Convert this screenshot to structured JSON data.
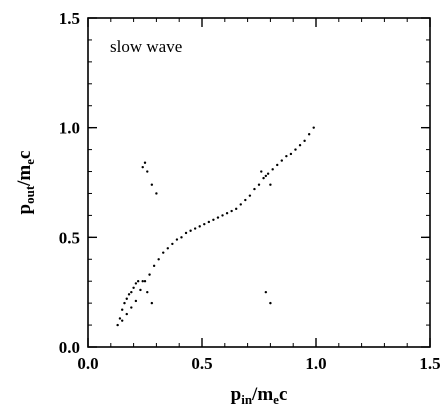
{
  "chart_data": {
    "type": "scatter",
    "title": "",
    "annotation": "slow wave",
    "xlabel": {
      "main": "p",
      "sub": "in",
      "suffix": "/m",
      "sub2": "e",
      "end": "c"
    },
    "ylabel": {
      "main": "p",
      "sub": "out",
      "suffix": "/m",
      "sub2": "e",
      "end": "c"
    },
    "xlim": [
      0.0,
      1.5
    ],
    "ylim": [
      0.0,
      1.5
    ],
    "x_ticks": [
      0.0,
      0.5,
      1.0,
      1.5
    ],
    "y_ticks": [
      0.0,
      0.5,
      1.0,
      1.5
    ],
    "x_tick_labels": [
      "0.0",
      "0.5",
      "1.0",
      "1.5"
    ],
    "y_tick_labels": [
      "0.0",
      "0.5",
      "1.0",
      "1.5"
    ],
    "minor_tick_step": 0.1,
    "grid": false,
    "point_color": "#000000",
    "series": [
      {
        "x": [
          0.13,
          0.14,
          0.15,
          0.16,
          0.17,
          0.18,
          0.19,
          0.2,
          0.21,
          0.22,
          0.15,
          0.17,
          0.19,
          0.21,
          0.23,
          0.25,
          0.27,
          0.29,
          0.31,
          0.33,
          0.35,
          0.37,
          0.39,
          0.41,
          0.43,
          0.45,
          0.47,
          0.49,
          0.51,
          0.53,
          0.55,
          0.57,
          0.59,
          0.61,
          0.63,
          0.65,
          0.67,
          0.69,
          0.71,
          0.73,
          0.75,
          0.77,
          0.79,
          0.81,
          0.83,
          0.85,
          0.87,
          0.89,
          0.91,
          0.93,
          0.95,
          0.97,
          0.99,
          0.24,
          0.25,
          0.26,
          0.28,
          0.3,
          0.24,
          0.26,
          0.28,
          0.76,
          0.78,
          0.8,
          0.78,
          0.8
        ],
        "y": [
          0.1,
          0.13,
          0.17,
          0.2,
          0.22,
          0.24,
          0.25,
          0.27,
          0.29,
          0.3,
          0.12,
          0.15,
          0.18,
          0.21,
          0.26,
          0.3,
          0.33,
          0.37,
          0.4,
          0.43,
          0.45,
          0.47,
          0.49,
          0.5,
          0.52,
          0.53,
          0.54,
          0.55,
          0.56,
          0.57,
          0.58,
          0.59,
          0.6,
          0.61,
          0.62,
          0.63,
          0.65,
          0.67,
          0.69,
          0.72,
          0.74,
          0.77,
          0.79,
          0.81,
          0.83,
          0.85,
          0.87,
          0.88,
          0.9,
          0.92,
          0.94,
          0.97,
          1.0,
          0.82,
          0.84,
          0.8,
          0.74,
          0.7,
          0.3,
          0.25,
          0.2,
          0.8,
          0.78,
          0.74,
          0.25,
          0.2
        ]
      }
    ]
  }
}
